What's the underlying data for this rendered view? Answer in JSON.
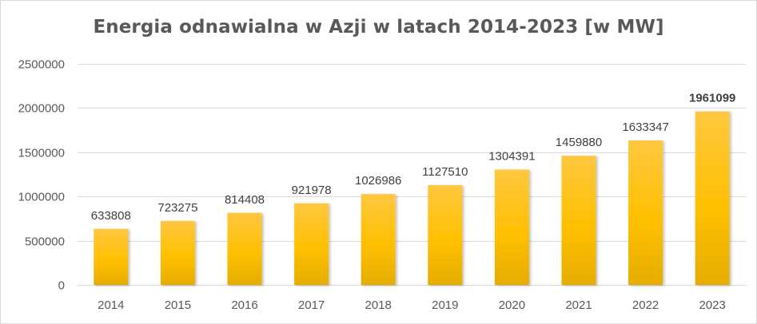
{
  "chart_data": {
    "type": "bar",
    "title": "Energia odnawialna w Azji w latach 2014-2023 [w MW]",
    "xlabel": "",
    "ylabel": "",
    "categories": [
      "2014",
      "2015",
      "2016",
      "2017",
      "2018",
      "2019",
      "2020",
      "2021",
      "2022",
      "2023"
    ],
    "values": [
      633808,
      723275,
      814408,
      921978,
      1026986,
      1127510,
      1304391,
      1459880,
      1633347,
      1961099
    ],
    "data_labels": [
      "633808",
      "723275",
      "814408",
      "921978",
      "1026986",
      "1127510",
      "1304391",
      "1459880",
      "1633347",
      "1961099"
    ],
    "highlighted_label_index": 9,
    "ylim": [
      0,
      2500000
    ],
    "y_ticks": [
      0,
      500000,
      1000000,
      1500000,
      2000000,
      2500000
    ],
    "y_tick_labels": [
      "0",
      "500000",
      "1000000",
      "1500000",
      "2000000",
      "2500000"
    ],
    "grid": true,
    "legend": "none",
    "colors": {
      "bar_top": "#FFC740",
      "bar_mid": "#FFC000",
      "bar_bottom": "#E6AD00",
      "gridline": "#d9d9d9",
      "text": "#595959"
    }
  }
}
